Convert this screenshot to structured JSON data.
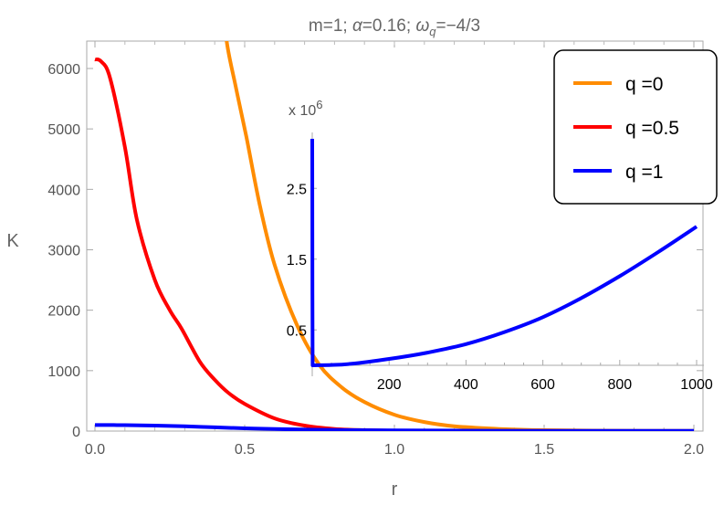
{
  "chart_data": [
    {
      "type": "line",
      "title": "m=1; α=0.16; ω_q=−4/3",
      "title_parts": {
        "a": "m=1; ",
        "alpha": "α",
        "b": "=0.16; ",
        "omega": "ω",
        "sub": "q",
        "c": "=−4/3"
      },
      "xlabel": "r",
      "ylabel": "K",
      "xlim": [
        0,
        2.0
      ],
      "ylim": [
        0,
        6500
      ],
      "xticks": [
        "0.0",
        "0.5",
        "1.0",
        "1.5",
        "2.0"
      ],
      "yticks": [
        "0",
        "1000",
        "2000",
        "3000",
        "4000",
        "5000",
        "6000"
      ],
      "grid": false,
      "legend_position": "top-right",
      "series": [
        {
          "name": "q =0",
          "color": "#FF8C00",
          "x": [
            0.43,
            0.44,
            0.47,
            0.506,
            0.55,
            0.6,
            0.675,
            0.75,
            0.825,
            0.9,
            1.0,
            1.1,
            1.2,
            1.35,
            1.5,
            1.75,
            2.0
          ],
          "y": [
            7200,
            6450,
            5700,
            4860,
            3750,
            2750,
            1750,
            1090,
            720,
            480,
            270,
            150,
            80,
            35,
            15,
            6,
            3
          ]
        },
        {
          "name": "q =0.5",
          "color": "#FF0000",
          "x": [
            0,
            0.02,
            0.05,
            0.1,
            0.14,
            0.2,
            0.25,
            0.29,
            0.35,
            0.4,
            0.445,
            0.5,
            0.6,
            0.7,
            0.8,
            0.9,
            1.0,
            1.25,
            1.5,
            2.0
          ],
          "y": [
            6150,
            6120,
            5850,
            4700,
            3500,
            2500,
            2000,
            1690,
            1150,
            850,
            635,
            450,
            210,
            90,
            35,
            15,
            6,
            2,
            1,
            0
          ]
        },
        {
          "name": "q =1",
          "color": "#0000FF",
          "x": [
            0,
            0.1,
            0.2,
            0.3,
            0.4,
            0.5,
            0.6,
            0.8,
            1.0,
            1.5,
            2.0
          ],
          "y": [
            100,
            98,
            90,
            78,
            62,
            46,
            33,
            18,
            10,
            5,
            3
          ]
        }
      ]
    },
    {
      "type": "line",
      "role": "inset",
      "y_multiplier_label": {
        "base": "x 10",
        "exp": "6"
      },
      "xlim": [
        0,
        1000
      ],
      "ylim": [
        0,
        3.2
      ],
      "xticks": [
        "200",
        "400",
        "600",
        "800",
        "1000"
      ],
      "yticks": [
        "0.5",
        "1.5",
        "2.5"
      ],
      "series": [
        {
          "color": "#0000FF",
          "x": [
            0,
            0.5,
            1,
            50,
            100,
            200,
            300,
            400,
            500,
            600,
            700,
            800,
            900,
            1000
          ],
          "y": [
            3.2,
            1.0,
            0.0,
            0.005,
            0.02,
            0.09,
            0.18,
            0.3,
            0.47,
            0.68,
            0.95,
            1.26,
            1.6,
            1.96
          ]
        }
      ]
    }
  ]
}
